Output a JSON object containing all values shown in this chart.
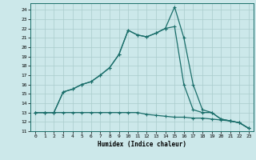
{
  "xlabel": "Humidex (Indice chaleur)",
  "bg_color": "#cce8ea",
  "grid_color": "#aacccc",
  "line_color": "#1a6e6a",
  "xlim": [
    -0.5,
    23.5
  ],
  "ylim": [
    11,
    24.7
  ],
  "yticks": [
    11,
    12,
    13,
    14,
    15,
    16,
    17,
    18,
    19,
    20,
    21,
    22,
    23,
    24
  ],
  "xticks": [
    0,
    1,
    2,
    3,
    4,
    5,
    6,
    7,
    8,
    9,
    10,
    11,
    12,
    13,
    14,
    15,
    16,
    17,
    18,
    19,
    20,
    21,
    22,
    23
  ],
  "line1_x": [
    0,
    1,
    2,
    3,
    4,
    5,
    6,
    7,
    8,
    9,
    10,
    11,
    12,
    13,
    14,
    15,
    16,
    17,
    18,
    19,
    20,
    21,
    22,
    23
  ],
  "line1_y": [
    13.0,
    13.0,
    13.0,
    15.2,
    15.5,
    16.0,
    16.3,
    17.0,
    17.8,
    19.2,
    21.8,
    21.3,
    21.1,
    21.5,
    22.0,
    24.3,
    21.0,
    16.0,
    13.3,
    13.0,
    12.3,
    12.1,
    11.9,
    11.3
  ],
  "line2_x": [
    0,
    1,
    2,
    3,
    4,
    5,
    6,
    7,
    8,
    9,
    10,
    11,
    12,
    13,
    14,
    15,
    16,
    17,
    18,
    19,
    20,
    21,
    22,
    23
  ],
  "line2_y": [
    13.0,
    13.0,
    13.0,
    15.2,
    15.5,
    16.0,
    16.3,
    17.0,
    17.8,
    19.2,
    21.8,
    21.3,
    21.1,
    21.5,
    22.0,
    22.2,
    16.0,
    13.3,
    13.0,
    13.0,
    12.3,
    12.1,
    11.9,
    11.3
  ],
  "line3_x": [
    0,
    1,
    2,
    3,
    4,
    5,
    6,
    7,
    8,
    9,
    10,
    11,
    12,
    13,
    14,
    15,
    16,
    17,
    18,
    19,
    20,
    21,
    22,
    23
  ],
  "line3_y": [
    13.0,
    13.0,
    13.0,
    13.0,
    13.0,
    13.0,
    13.0,
    13.0,
    13.0,
    13.0,
    13.0,
    13.0,
    12.8,
    12.7,
    12.6,
    12.5,
    12.5,
    12.4,
    12.4,
    12.3,
    12.2,
    12.1,
    11.9,
    11.3
  ]
}
